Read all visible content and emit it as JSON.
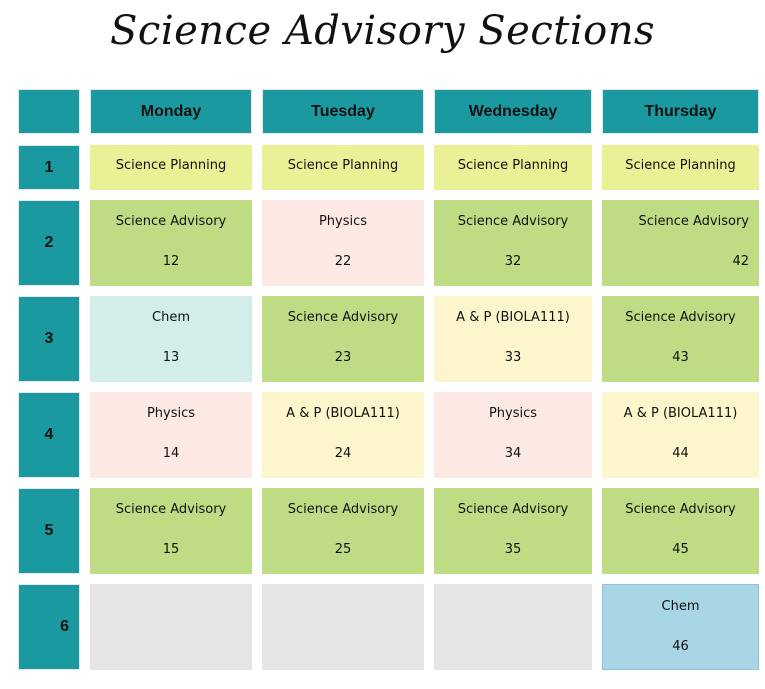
{
  "title": "Science Advisory Sections",
  "days": [
    "Monday",
    "Tuesday",
    "Wednesday",
    "Thursday"
  ],
  "rows": [
    {
      "label": "1",
      "cells": [
        {
          "subject": "Science Planning",
          "number": "",
          "color": "#eaf095"
        },
        {
          "subject": "Science Planning",
          "number": "",
          "color": "#eaf095"
        },
        {
          "subject": "Science Planning",
          "number": "",
          "color": "#eaf095"
        },
        {
          "subject": "Science Planning",
          "number": "",
          "color": "#eaf095"
        }
      ]
    },
    {
      "label": "2",
      "cells": [
        {
          "subject": "Science Advisory",
          "number": "12",
          "color": "#bedc84"
        },
        {
          "subject": "Physics",
          "number": "22",
          "color": "#fde9e3"
        },
        {
          "subject": "Science Advisory",
          "number": "32",
          "color": "#bedc84"
        },
        {
          "subject": "Science Advisory",
          "number": "42",
          "color": "#bedc84"
        }
      ]
    },
    {
      "label": "3",
      "cells": [
        {
          "subject": "Chem",
          "number": "13",
          "color": "#d2edea"
        },
        {
          "subject": "Science Advisory",
          "number": "23",
          "color": "#bedc84"
        },
        {
          "subject": "A & P (BIOLA111)",
          "number": "33",
          "color": "#fdf6cc"
        },
        {
          "subject": "Science Advisory",
          "number": "43",
          "color": "#bedc84"
        }
      ]
    },
    {
      "label": "4",
      "cells": [
        {
          "subject": "Physics",
          "number": "14",
          "color": "#fde9e3"
        },
        {
          "subject": "A & P (BIOLA111)",
          "number": "24",
          "color": "#fdf6cc"
        },
        {
          "subject": "Physics",
          "number": "34",
          "color": "#fde9e3"
        },
        {
          "subject": "A & P (BIOLA111)",
          "number": "44",
          "color": "#fdf6cc"
        }
      ]
    },
    {
      "label": "5",
      "cells": [
        {
          "subject": "Science Advisory",
          "number": "15",
          "color": "#bedc84"
        },
        {
          "subject": "Science Advisory",
          "number": "25",
          "color": "#bedc84"
        },
        {
          "subject": "Science Advisory",
          "number": "35",
          "color": "#bedc84"
        },
        {
          "subject": "Science Advisory",
          "number": "45",
          "color": "#bedc84"
        }
      ]
    },
    {
      "label": "6",
      "cells": [
        {
          "subject": "",
          "number": "",
          "color": "#e5e5e5"
        },
        {
          "subject": "",
          "number": "",
          "color": "#e5e5e5"
        },
        {
          "subject": "",
          "number": "",
          "color": "#e5e5e5"
        },
        {
          "subject": "Chem",
          "number": "46",
          "color": "#a9d6e5"
        }
      ]
    }
  ],
  "colors": {
    "header_teal": "#1a9aa0"
  }
}
